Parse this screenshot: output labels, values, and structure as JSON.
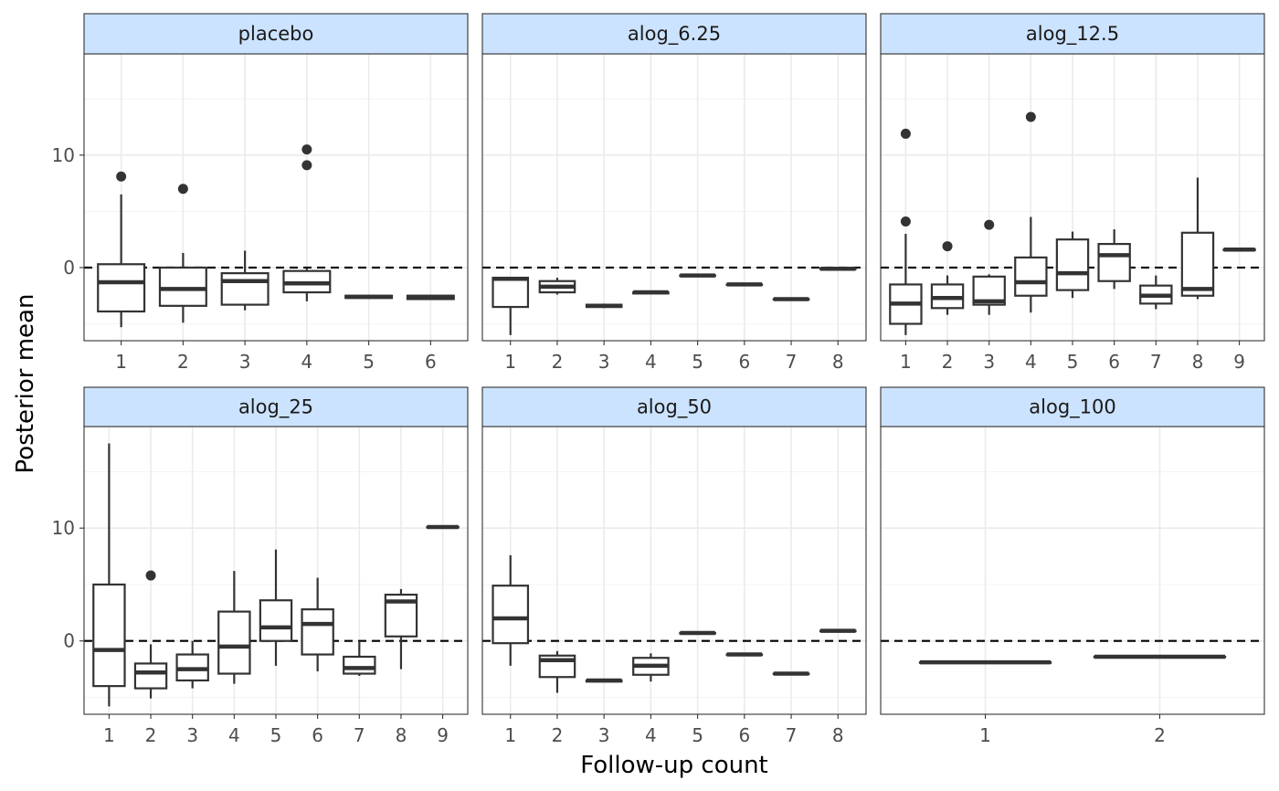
{
  "chart_data": {
    "type": "boxplot",
    "layout": "facet-grid 2x3, shared y axis, free x axis",
    "xlabel": "Follow-up count",
    "ylabel": "Posterior mean",
    "ylim": [
      -6.5,
      19
    ],
    "y_ticks": [
      0,
      10
    ],
    "reference_line": {
      "y": 0,
      "style": "dashed"
    },
    "grid": true,
    "panels": [
      {
        "title": "placebo",
        "categories": [
          "1",
          "2",
          "3",
          "4",
          "5",
          "6"
        ],
        "boxes": [
          {
            "x": "1",
            "whisker_low": -5.3,
            "q1": -3.9,
            "median": -1.3,
            "q3": 0.3,
            "whisker_high": 6.5,
            "outliers": [
              8.1
            ]
          },
          {
            "x": "2",
            "whisker_low": -4.9,
            "q1": -3.4,
            "median": -1.9,
            "q3": 0.0,
            "whisker_high": 1.3,
            "outliers": [
              7.0
            ]
          },
          {
            "x": "3",
            "whisker_low": -3.8,
            "q1": -3.3,
            "median": -1.2,
            "q3": -0.5,
            "whisker_high": 1.5,
            "outliers": []
          },
          {
            "x": "4",
            "whisker_low": -3.0,
            "q1": -2.2,
            "median": -1.4,
            "q3": -0.3,
            "whisker_high": -0.1,
            "outliers": [
              9.1,
              10.5
            ]
          },
          {
            "x": "5",
            "whisker_low": -2.8,
            "q1": -2.7,
            "median": -2.6,
            "q3": -2.5,
            "whisker_high": -2.4,
            "outliers": []
          },
          {
            "x": "6",
            "whisker_low": -2.8,
            "q1": -2.8,
            "median": -2.6,
            "q3": -2.5,
            "whisker_high": -2.5,
            "outliers": []
          }
        ]
      },
      {
        "title": "alog_6.25",
        "categories": [
          "1",
          "2",
          "3",
          "4",
          "5",
          "6",
          "7",
          "8"
        ],
        "boxes": [
          {
            "x": "1",
            "whisker_low": -6.0,
            "q1": -3.5,
            "median": -1.0,
            "q3": -0.9,
            "whisker_high": -0.9,
            "outliers": []
          },
          {
            "x": "2",
            "whisker_low": -2.4,
            "q1": -2.2,
            "median": -1.7,
            "q3": -1.2,
            "whisker_high": -0.9,
            "outliers": []
          },
          {
            "x": "3",
            "whisker_low": -3.6,
            "q1": -3.5,
            "median": -3.4,
            "q3": -3.3,
            "whisker_high": -3.2,
            "outliers": []
          },
          {
            "x": "4",
            "whisker_low": -2.3,
            "q1": -2.3,
            "median": -2.2,
            "q3": -2.2,
            "whisker_high": -2.2,
            "outliers": []
          },
          {
            "x": "5",
            "whisker_low": -0.7,
            "q1": -0.7,
            "median": -0.7,
            "q3": -0.7,
            "whisker_high": -0.7,
            "outliers": []
          },
          {
            "x": "6",
            "whisker_low": -1.5,
            "q1": -1.5,
            "median": -1.5,
            "q3": -1.5,
            "whisker_high": -1.5,
            "outliers": []
          },
          {
            "x": "7",
            "whisker_low": -2.8,
            "q1": -2.8,
            "median": -2.8,
            "q3": -2.8,
            "whisker_high": -2.8,
            "outliers": []
          },
          {
            "x": "8",
            "whisker_low": -0.1,
            "q1": -0.1,
            "median": -0.1,
            "q3": -0.1,
            "whisker_high": -0.1,
            "outliers": []
          }
        ]
      },
      {
        "title": "alog_12.5",
        "categories": [
          "1",
          "2",
          "3",
          "4",
          "5",
          "6",
          "7",
          "8",
          "9"
        ],
        "boxes": [
          {
            "x": "1",
            "whisker_low": -6.0,
            "q1": -5.0,
            "median": -3.2,
            "q3": -1.5,
            "whisker_high": 3.0,
            "outliers": [
              4.1,
              11.9
            ]
          },
          {
            "x": "2",
            "whisker_low": -4.2,
            "q1": -3.6,
            "median": -2.7,
            "q3": -1.5,
            "whisker_high": -0.7,
            "outliers": [
              1.9
            ]
          },
          {
            "x": "3",
            "whisker_low": -4.2,
            "q1": -3.3,
            "median": -3.0,
            "q3": -0.8,
            "whisker_high": -0.6,
            "outliers": [
              3.8
            ]
          },
          {
            "x": "4",
            "whisker_low": -4.0,
            "q1": -2.5,
            "median": -1.3,
            "q3": 0.9,
            "whisker_high": 4.5,
            "outliers": [
              13.4
            ]
          },
          {
            "x": "5",
            "whisker_low": -2.7,
            "q1": -2.0,
            "median": -0.5,
            "q3": 2.5,
            "whisker_high": 3.2,
            "outliers": []
          },
          {
            "x": "6",
            "whisker_low": -1.9,
            "q1": -1.2,
            "median": 1.1,
            "q3": 2.1,
            "whisker_high": 3.4,
            "outliers": []
          },
          {
            "x": "7",
            "whisker_low": -3.7,
            "q1": -3.2,
            "median": -2.5,
            "q3": -1.6,
            "whisker_high": -0.7,
            "outliers": []
          },
          {
            "x": "8",
            "whisker_low": -2.8,
            "q1": -2.5,
            "median": -1.9,
            "q3": 3.1,
            "whisker_high": 8.0,
            "outliers": []
          },
          {
            "x": "9",
            "whisker_low": 1.6,
            "q1": 1.6,
            "median": 1.6,
            "q3": 1.6,
            "whisker_high": 1.6,
            "outliers": []
          }
        ]
      },
      {
        "title": "alog_25",
        "categories": [
          "1",
          "2",
          "3",
          "4",
          "5",
          "6",
          "7",
          "8",
          "9"
        ],
        "boxes": [
          {
            "x": "1",
            "whisker_low": -5.8,
            "q1": -4.0,
            "median": -0.8,
            "q3": 5.0,
            "whisker_high": 17.5,
            "outliers": []
          },
          {
            "x": "2",
            "whisker_low": -5.1,
            "q1": -4.2,
            "median": -2.8,
            "q3": -2.0,
            "whisker_high": -0.3,
            "outliers": [
              5.8
            ]
          },
          {
            "x": "3",
            "whisker_low": -4.2,
            "q1": -3.5,
            "median": -2.5,
            "q3": -1.2,
            "whisker_high": 0.0,
            "outliers": []
          },
          {
            "x": "4",
            "whisker_low": -3.8,
            "q1": -2.9,
            "median": -0.5,
            "q3": 2.6,
            "whisker_high": 6.2,
            "outliers": []
          },
          {
            "x": "5",
            "whisker_low": -2.2,
            "q1": 0.0,
            "median": 1.2,
            "q3": 3.6,
            "whisker_high": 8.1,
            "outliers": []
          },
          {
            "x": "6",
            "whisker_low": -2.7,
            "q1": -1.2,
            "median": 1.5,
            "q3": 2.8,
            "whisker_high": 5.6,
            "outliers": []
          },
          {
            "x": "7",
            "whisker_low": -3.1,
            "q1": -2.9,
            "median": -2.4,
            "q3": -1.4,
            "whisker_high": -0.1,
            "outliers": []
          },
          {
            "x": "8",
            "whisker_low": -2.5,
            "q1": 0.4,
            "median": 3.5,
            "q3": 4.1,
            "whisker_high": 4.6,
            "outliers": []
          },
          {
            "x": "9",
            "whisker_low": 10.1,
            "q1": 10.1,
            "median": 10.1,
            "q3": 10.1,
            "whisker_high": 10.1,
            "outliers": []
          }
        ]
      },
      {
        "title": "alog_50",
        "categories": [
          "1",
          "2",
          "3",
          "4",
          "5",
          "6",
          "7",
          "8"
        ],
        "boxes": [
          {
            "x": "1",
            "whisker_low": -2.2,
            "q1": -0.2,
            "median": 2.0,
            "q3": 4.9,
            "whisker_high": 7.6,
            "outliers": []
          },
          {
            "x": "2",
            "whisker_low": -4.6,
            "q1": -3.2,
            "median": -1.7,
            "q3": -1.3,
            "whisker_high": -0.9,
            "outliers": []
          },
          {
            "x": "3",
            "whisker_low": -3.6,
            "q1": -3.6,
            "median": -3.5,
            "q3": -3.5,
            "whisker_high": -3.4,
            "outliers": []
          },
          {
            "x": "4",
            "whisker_low": -3.6,
            "q1": -3.0,
            "median": -2.2,
            "q3": -1.5,
            "whisker_high": -1.1,
            "outliers": []
          },
          {
            "x": "5",
            "whisker_low": 0.7,
            "q1": 0.7,
            "median": 0.7,
            "q3": 0.7,
            "whisker_high": 0.7,
            "outliers": []
          },
          {
            "x": "6",
            "whisker_low": -1.2,
            "q1": -1.2,
            "median": -1.2,
            "q3": -1.2,
            "whisker_high": -1.2,
            "outliers": []
          },
          {
            "x": "7",
            "whisker_low": -2.9,
            "q1": -2.9,
            "median": -2.9,
            "q3": -2.9,
            "whisker_high": -2.9,
            "outliers": []
          },
          {
            "x": "8",
            "whisker_low": 0.9,
            "q1": 0.9,
            "median": 0.9,
            "q3": 0.9,
            "whisker_high": 0.9,
            "outliers": []
          }
        ]
      },
      {
        "title": "alog_100",
        "categories": [
          "1",
          "2"
        ],
        "boxes": [
          {
            "x": "1",
            "whisker_low": -1.9,
            "q1": -1.9,
            "median": -1.9,
            "q3": -1.9,
            "whisker_high": -1.9,
            "outliers": []
          },
          {
            "x": "2",
            "whisker_low": -1.4,
            "q1": -1.4,
            "median": -1.4,
            "q3": -1.4,
            "whisker_high": -1.4,
            "outliers": []
          }
        ]
      }
    ]
  }
}
